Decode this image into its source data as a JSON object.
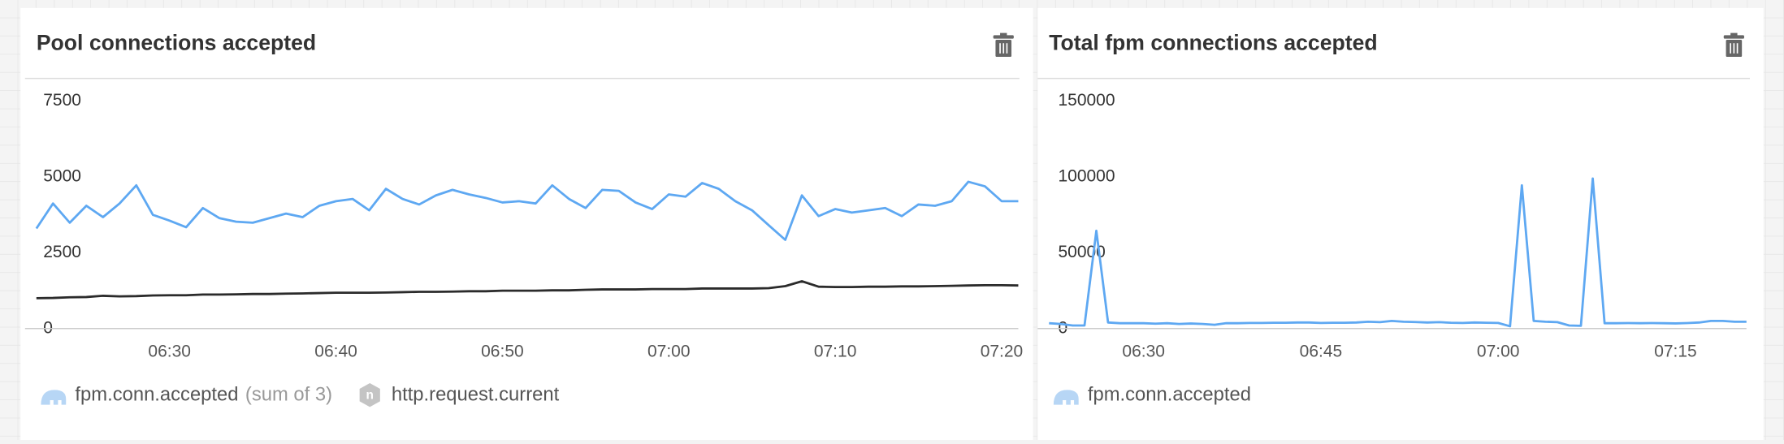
{
  "chart_data": [
    {
      "type": "line",
      "title": "Pool connections accepted",
      "categories": [
        null,
        null,
        null,
        null,
        null,
        null,
        null,
        null,
        "06:30",
        null,
        null,
        null,
        null,
        null,
        null,
        null,
        null,
        null,
        "06:40",
        null,
        null,
        null,
        null,
        null,
        null,
        null,
        null,
        null,
        "06:50",
        null,
        null,
        null,
        null,
        null,
        null,
        null,
        null,
        null,
        "07:00",
        null,
        null,
        null,
        null,
        null,
        null,
        null,
        null,
        null,
        "07:10",
        null,
        null,
        null,
        null,
        null,
        null,
        null,
        null,
        null,
        "07:20",
        null
      ],
      "series": [
        {
          "name": "fpm.conn.accepted",
          "legend_note": "(sum of 3)",
          "color": "#5ea8f2",
          "values": [
            3300,
            4125,
            3490,
            4050,
            3675,
            4125,
            4725,
            3750,
            3560,
            3340,
            3975,
            3640,
            3525,
            3490,
            3640,
            3790,
            3675,
            4050,
            4200,
            4275,
            3900,
            4610,
            4275,
            4090,
            4390,
            4575,
            4425,
            4310,
            4160,
            4200,
            4125,
            4725,
            4275,
            3975,
            4575,
            4540,
            4160,
            3940,
            4425,
            4350,
            4800,
            4610,
            4200,
            3900,
            3410,
            2925,
            4390,
            3710,
            3940,
            3825,
            3900,
            3975,
            3710,
            4090,
            4050,
            4200,
            4840,
            4690,
            4200,
            4200
          ]
        },
        {
          "name": "http.request.current",
          "color": "#2b2b2b",
          "values": [
            1000,
            1010,
            1030,
            1040,
            1080,
            1060,
            1070,
            1090,
            1100,
            1100,
            1120,
            1120,
            1130,
            1140,
            1140,
            1150,
            1160,
            1170,
            1180,
            1180,
            1180,
            1190,
            1200,
            1210,
            1210,
            1220,
            1230,
            1230,
            1250,
            1250,
            1250,
            1260,
            1260,
            1280,
            1290,
            1290,
            1290,
            1300,
            1300,
            1300,
            1320,
            1320,
            1320,
            1320,
            1330,
            1400,
            1560,
            1380,
            1370,
            1370,
            1380,
            1380,
            1390,
            1390,
            1400,
            1410,
            1420,
            1430,
            1430,
            1420
          ]
        }
      ],
      "ylim": [
        0,
        7500
      ],
      "yticks": [
        0,
        2500,
        5000,
        7500
      ]
    },
    {
      "type": "line",
      "title": "Total fpm connections accepted",
      "categories": [
        null,
        null,
        null,
        null,
        null,
        null,
        null,
        null,
        "06:30",
        null,
        null,
        null,
        null,
        null,
        null,
        null,
        null,
        null,
        null,
        null,
        null,
        null,
        null,
        "06:45",
        null,
        null,
        null,
        null,
        null,
        null,
        null,
        null,
        null,
        null,
        null,
        null,
        null,
        null,
        "07:00",
        null,
        null,
        null,
        null,
        null,
        null,
        null,
        null,
        null,
        null,
        null,
        null,
        null,
        null,
        "07:15",
        null,
        null,
        null,
        null,
        null,
        null
      ],
      "series": [
        {
          "name": "fpm.conn.accepted",
          "color": "#5ea8f2",
          "values": [
            3500,
            3000,
            2000,
            2000,
            64500,
            4000,
            3500,
            3500,
            3500,
            3200,
            3500,
            3000,
            3300,
            3000,
            2500,
            3500,
            3500,
            3700,
            3700,
            3800,
            3800,
            4000,
            4000,
            3700,
            3800,
            3800,
            4000,
            4500,
            4200,
            5000,
            4500,
            4300,
            4000,
            4200,
            3800,
            3700,
            4000,
            3800,
            3700,
            1500,
            94500,
            5000,
            4500,
            4200,
            2000,
            1800,
            99000,
            3500,
            3500,
            3600,
            3500,
            3600,
            3500,
            3400,
            3600,
            4000,
            5000,
            5000,
            4500,
            4500
          ]
        }
      ],
      "ylim": [
        0,
        150000
      ],
      "yticks": [
        0,
        50000,
        100000,
        150000
      ]
    }
  ]
}
